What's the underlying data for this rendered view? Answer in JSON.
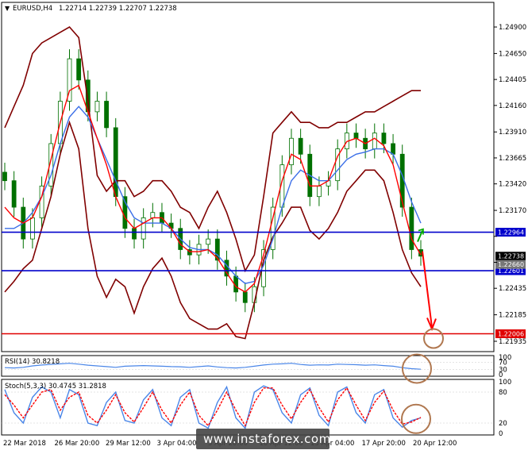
{
  "header": {
    "instrument": "EURUSD,H4",
    "ohlc": "1.22714 1.22739 1.22707 1.22738"
  },
  "watermark": "www.instaforex.com",
  "colors": {
    "candle": "#007000",
    "bollinger": "#800000",
    "ma_red": "#ff0000",
    "ma_blue": "#3a6ee8",
    "support_resistance": "#0000cc",
    "target_line": "#e00000",
    "rsi_line": "#4a86e8",
    "stoch_main": "#4a86e8",
    "stoch_signal": "#ff0000",
    "annotation_circle": "#b07850",
    "arrow_red": "#ff0000",
    "arrow_green": "#00aa00"
  },
  "chart_data": [
    {
      "type": "line",
      "panel": "price",
      "title": "EURUSD,H4",
      "subtitle": "1.22714 1.22739 1.22707 1.22738",
      "y_ticks": [
        1.249,
        1.2465,
        1.24405,
        1.2416,
        1.2391,
        1.23665,
        1.2342,
        1.2317,
        1.22925,
        1.2268,
        1.22435,
        1.22185,
        1.21935
      ],
      "y_tick_labels": [
        "1.24900",
        "1.24650",
        "1.24405",
        "1.24160",
        "1.23910",
        "1.23665",
        "1.23420",
        "1.23170",
        "1.22925",
        "1.22680",
        "1.22435",
        "1.22185",
        "1.21935"
      ],
      "ylim": [
        1.2186,
        1.2502
      ],
      "x_tick_labels": [
        "22 Mar 2018",
        "26 Mar 20:00",
        "29 Mar 12:00",
        "3 Apr 04:00",
        "5 Apr 20:00",
        "10 Apr 12:00",
        "13 Apr 04:00",
        "17 Apr 20:00",
        "20 Apr 12:00"
      ],
      "levels": [
        {
          "value": 1.22964,
          "label": "1.22964",
          "style": "blue"
        },
        {
          "value": 1.22601,
          "label": "1.22601",
          "style": "blue"
        },
        {
          "value": 1.22006,
          "label": "1.22006",
          "style": "red"
        }
      ],
      "price_tags": [
        {
          "value": 1.22738,
          "label": "1.22738",
          "style": "black"
        },
        {
          "value": 1.2266,
          "label": "1.22660",
          "style": "gray"
        }
      ],
      "series": [
        {
          "name": "price",
          "values": [
            1.2345,
            1.232,
            1.229,
            1.231,
            1.234,
            1.238,
            1.242,
            1.246,
            1.244,
            1.241,
            1.242,
            1.2395,
            1.233,
            1.23,
            1.229,
            1.231,
            1.2315,
            1.2305,
            1.23,
            1.228,
            1.2275,
            1.2285,
            1.229,
            1.227,
            1.2255,
            1.224,
            1.223,
            1.2245,
            1.228,
            1.232,
            1.236,
            1.2385,
            1.237,
            1.233,
            1.234,
            1.2345,
            1.2375,
            1.239,
            1.2385,
            1.2375,
            1.239,
            1.238,
            1.237,
            1.232,
            1.228,
            1.22738
          ]
        },
        {
          "name": "upper_band",
          "values": [
            1.2395,
            1.2415,
            1.2435,
            1.2465,
            1.2475,
            1.248,
            1.2485,
            1.249,
            1.248,
            1.242,
            1.235,
            1.2335,
            1.2345,
            1.2345,
            1.233,
            1.2335,
            1.2345,
            1.2345,
            1.2335,
            1.232,
            1.2315,
            1.23,
            1.232,
            1.2335,
            1.2315,
            1.229,
            1.226,
            1.2275,
            1.233,
            1.239,
            1.24,
            1.241,
            1.24,
            1.24,
            1.2395,
            1.2395,
            1.24,
            1.24,
            1.2405,
            1.241,
            1.241,
            1.2415,
            1.242,
            1.2425,
            1.243,
            1.243
          ]
        },
        {
          "name": "lower_band",
          "values": [
            1.224,
            1.225,
            1.2262,
            1.227,
            1.23,
            1.233,
            1.237,
            1.24,
            1.2375,
            1.23,
            1.2255,
            1.2235,
            1.2252,
            1.2245,
            1.222,
            1.2245,
            1.2262,
            1.2272,
            1.2255,
            1.223,
            1.2215,
            1.221,
            1.2205,
            1.2205,
            1.221,
            1.2198,
            1.2196,
            1.223,
            1.227,
            1.2292,
            1.2305,
            1.232,
            1.232,
            1.2298,
            1.229,
            1.23,
            1.2315,
            1.2335,
            1.2345,
            1.2355,
            1.2355,
            1.2345,
            1.2315,
            1.228,
            1.2258,
            1.2245
          ]
        },
        {
          "name": "ma_fast",
          "values": [
            1.232,
            1.231,
            1.2305,
            1.231,
            1.233,
            1.2365,
            1.24,
            1.243,
            1.2435,
            1.241,
            1.2385,
            1.236,
            1.233,
            1.231,
            1.23,
            1.2305,
            1.231,
            1.231,
            1.23,
            1.2285,
            1.2278,
            1.2278,
            1.228,
            1.2272,
            1.2258,
            1.2245,
            1.224,
            1.2248,
            1.2275,
            1.231,
            1.2345,
            1.237,
            1.2365,
            1.234,
            1.234,
            1.2345,
            1.2368,
            1.2382,
            1.2385,
            1.238,
            1.2385,
            1.2378,
            1.236,
            1.2325,
            1.229,
            1.2275
          ]
        },
        {
          "name": "ma_slow",
          "values": [
            1.23,
            1.23,
            1.2305,
            1.2315,
            1.233,
            1.235,
            1.238,
            1.2405,
            1.2415,
            1.2405,
            1.2385,
            1.2365,
            1.2345,
            1.2325,
            1.231,
            1.2305,
            1.2305,
            1.2305,
            1.23,
            1.229,
            1.2282,
            1.228,
            1.228,
            1.2275,
            1.2265,
            1.2255,
            1.2248,
            1.225,
            1.2265,
            1.229,
            1.232,
            1.2345,
            1.2355,
            1.235,
            1.2345,
            1.2345,
            1.2355,
            1.2365,
            1.237,
            1.2372,
            1.2375,
            1.2375,
            1.237,
            1.235,
            1.2325,
            1.2305
          ]
        }
      ]
    },
    {
      "type": "line",
      "panel": "rsi",
      "title": "RSI(14) 30.8218",
      "ylim": [
        0,
        100
      ],
      "y_ticks": [
        100,
        70,
        30,
        0
      ],
      "y_tick_labels": [
        "100",
        "70",
        "30",
        "0"
      ],
      "series": [
        {
          "name": "RSI(14)",
          "values": [
            40,
            38,
            42,
            50,
            55,
            58,
            62,
            65,
            60,
            54,
            50,
            46,
            42,
            48,
            50,
            52,
            50,
            48,
            46,
            45,
            42,
            46,
            50,
            44,
            40,
            38,
            42,
            48,
            55,
            60,
            62,
            65,
            58,
            54,
            56,
            55,
            60,
            58,
            57,
            54,
            56,
            52,
            48,
            40,
            34,
            31
          ]
        }
      ]
    },
    {
      "type": "line",
      "panel": "stoch",
      "title": "Stoch(5,3,3) 30.4745 31.2818",
      "ylim": [
        0,
        100
      ],
      "y_ticks": [
        100,
        80,
        20,
        0
      ],
      "y_tick_labels": [
        "100",
        "80",
        "20",
        "0"
      ],
      "series": [
        {
          "name": "Stoch main",
          "values": [
            85,
            40,
            20,
            70,
            90,
            80,
            30,
            85,
            75,
            20,
            15,
            60,
            80,
            25,
            20,
            65,
            85,
            30,
            15,
            70,
            85,
            20,
            10,
            60,
            90,
            30,
            10,
            80,
            92,
            85,
            40,
            20,
            75,
            88,
            35,
            15,
            80,
            90,
            40,
            20,
            75,
            85,
            30,
            12,
            25,
            30
          ]
        },
        {
          "name": "Stoch signal",
          "values": [
            75,
            55,
            30,
            55,
            80,
            85,
            45,
            70,
            80,
            35,
            20,
            45,
            75,
            40,
            22,
            50,
            80,
            45,
            20,
            55,
            80,
            35,
            15,
            45,
            80,
            45,
            15,
            60,
            88,
            88,
            55,
            28,
            60,
            85,
            50,
            22,
            65,
            88,
            55,
            25,
            60,
            82,
            45,
            18,
            22,
            31
          ]
        }
      ]
    }
  ]
}
